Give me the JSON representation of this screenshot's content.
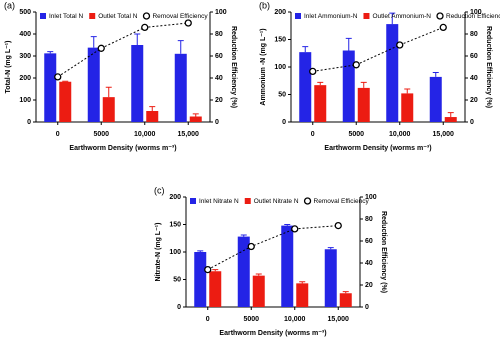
{
  "chart_data": [
    {
      "type": "bar",
      "panel_label": "(a)",
      "ylabel": "Total-N (mg L⁻¹)",
      "y2label": "Reduction Efficiency (%)",
      "xlabel": "Earthworm Density (worms m⁻³)",
      "categories": [
        "0",
        "5000",
        "10,000",
        "15,000"
      ],
      "series": [
        {
          "name": "Inlet Total N",
          "color": "#2424e6",
          "values": [
            312,
            338,
            350,
            310
          ],
          "errors": [
            8,
            50,
            50,
            60
          ]
        },
        {
          "name": "Outlet Total N",
          "color": "#ec1c12",
          "values": [
            183,
            113,
            50,
            25
          ],
          "errors": [
            2,
            45,
            20,
            12
          ]
        },
        {
          "name": "Removal Efficiency",
          "type": "line",
          "axis": "y2",
          "color": "#000000",
          "values": [
            41,
            67,
            86,
            90
          ]
        }
      ],
      "ylim": [
        0,
        500
      ],
      "yticks": [
        0,
        100,
        200,
        300,
        400,
        500
      ],
      "y2lim": [
        0,
        100
      ],
      "y2ticks": [
        0,
        20,
        40,
        60,
        80,
        100
      ]
    },
    {
      "type": "bar",
      "panel_label": "(b)",
      "ylabel": "Ammonium -N (mg L⁻¹)",
      "y2label": "Reduction Efficiency (%)",
      "xlabel": "Earthworm Density (worms m⁻³)",
      "categories": [
        "0",
        "5000",
        "10,000",
        "15,000"
      ],
      "series": [
        {
          "name": "Inlet Ammonium-N",
          "color": "#2424e6",
          "values": [
            127,
            130,
            178,
            82
          ],
          "errors": [
            10,
            22,
            20,
            8
          ]
        },
        {
          "name": "Outlet Ammonium-N",
          "color": "#ec1c12",
          "values": [
            67,
            62,
            52,
            9
          ],
          "errors": [
            5,
            10,
            8,
            8
          ]
        },
        {
          "name": "Reduction Efficiency",
          "type": "line",
          "axis": "y2",
          "color": "#000000",
          "values": [
            46,
            52,
            70,
            86
          ]
        }
      ],
      "ylim": [
        0,
        200
      ],
      "yticks": [
        0,
        50,
        100,
        150,
        200
      ],
      "y2lim": [
        0,
        100
      ],
      "y2ticks": [
        0,
        20,
        40,
        60,
        80,
        100
      ]
    },
    {
      "type": "bar",
      "panel_label": "(c)",
      "ylabel": "Nitrate-N (mg L⁻¹)",
      "y2label": "Reduction Efficiency (%)",
      "xlabel": "Earthworm Density (worms m⁻³)",
      "categories": [
        "0",
        "5000",
        "10,000",
        "15,000"
      ],
      "series": [
        {
          "name": "Inlet Nitrate N",
          "color": "#2424e6",
          "values": [
            100,
            128,
            148,
            105
          ],
          "errors": [
            2,
            3,
            2,
            3
          ]
        },
        {
          "name": "Outlet Nitrate N",
          "color": "#ec1c12",
          "values": [
            65,
            57,
            43,
            25
          ],
          "errors": [
            3,
            3,
            3,
            3
          ]
        },
        {
          "name": "Removal Efficiency",
          "type": "line",
          "axis": "y2",
          "color": "#000000",
          "values": [
            34,
            55,
            71,
            74
          ]
        }
      ],
      "ylim": [
        0,
        200
      ],
      "yticks": [
        0,
        50,
        100,
        150,
        200
      ],
      "y2lim": [
        0,
        100
      ],
      "y2ticks": [
        0,
        20,
        40,
        60,
        80,
        100
      ]
    }
  ]
}
